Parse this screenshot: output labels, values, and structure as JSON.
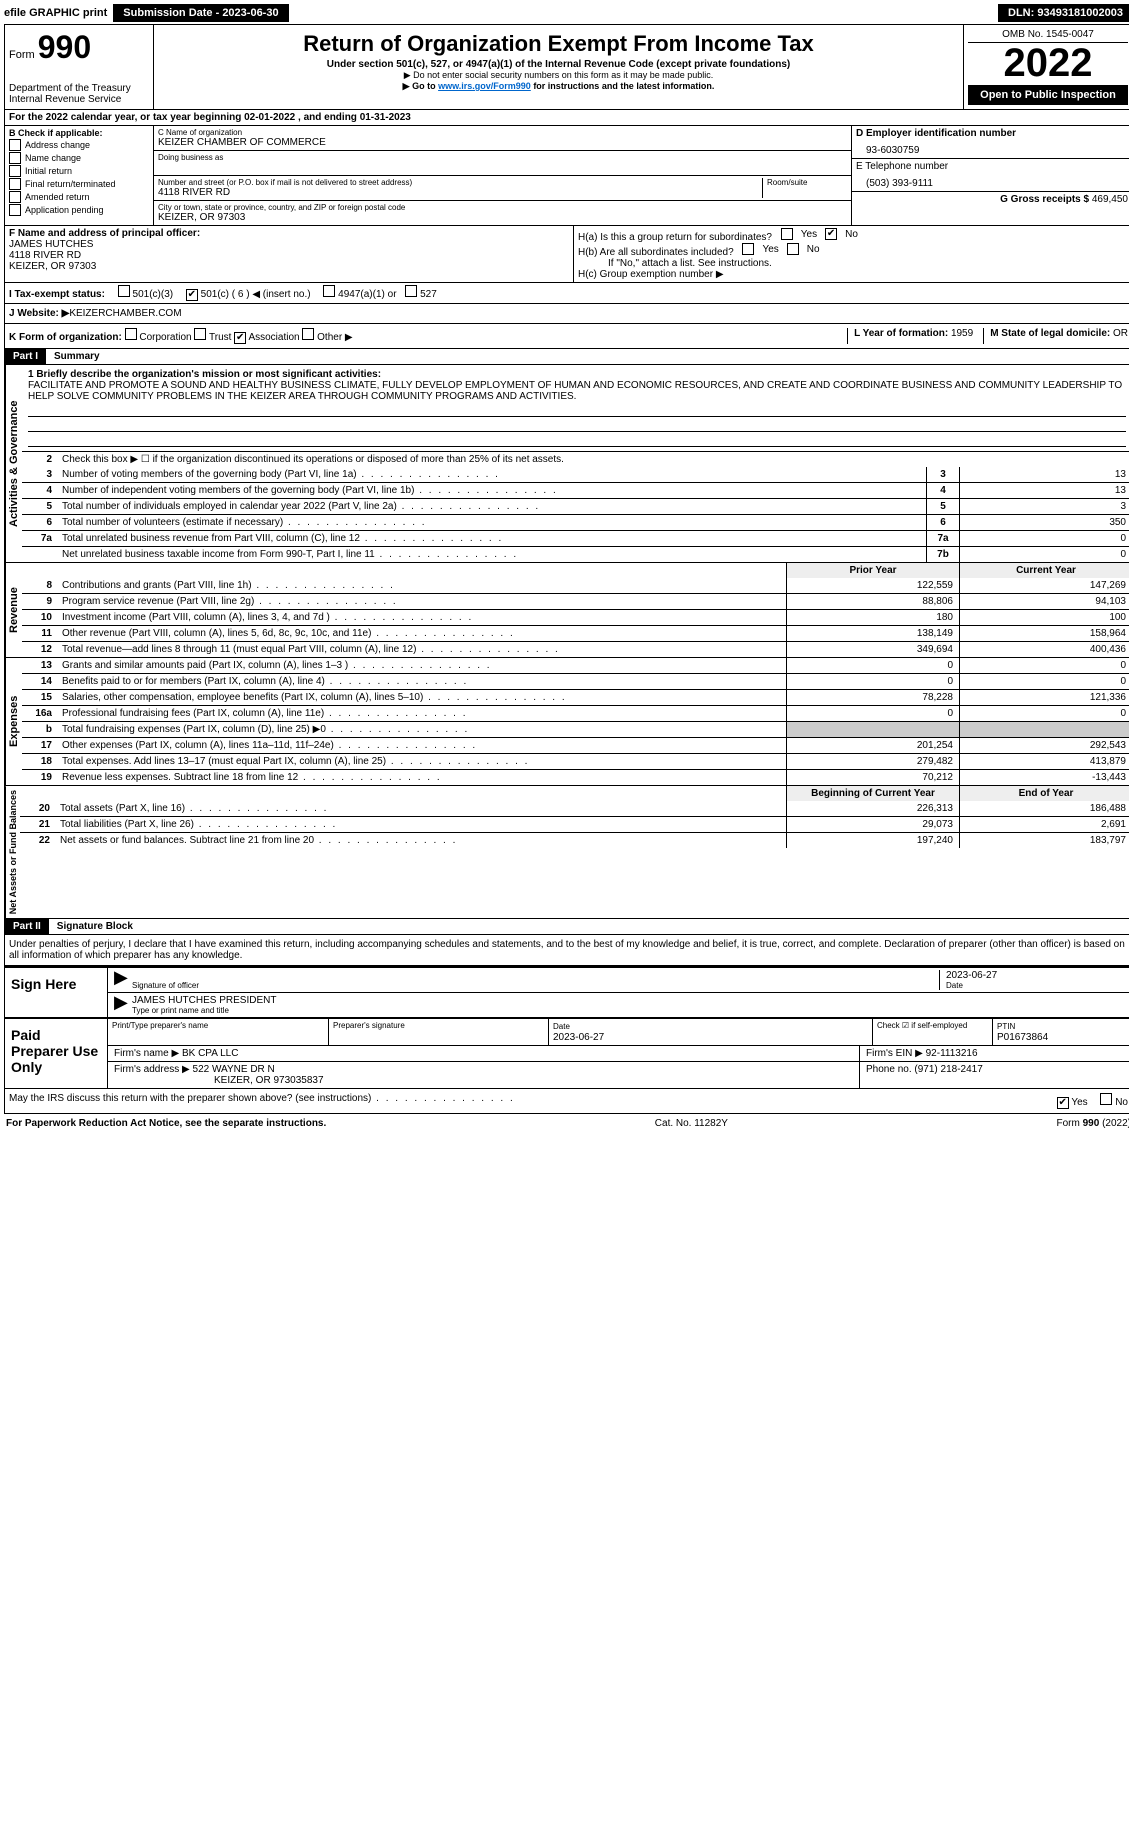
{
  "topbar": {
    "efile": "efile GRAPHIC print",
    "submission": "Submission Date - 2023-06-30",
    "dln": "DLN: 93493181002003"
  },
  "header": {
    "form_label": "Form",
    "form_number": "990",
    "title": "Return of Organization Exempt From Income Tax",
    "subtitle": "Under section 501(c), 527, or 4947(a)(1) of the Internal Revenue Code (except private foundations)",
    "note1": "▶ Do not enter social security numbers on this form as it may be made public.",
    "note2_pre": "▶ Go to ",
    "note2_link": "www.irs.gov/Form990",
    "note2_post": " for instructions and the latest information.",
    "dept": "Department of the Treasury",
    "irs": "Internal Revenue Service",
    "omb": "OMB No. 1545-0047",
    "year": "2022",
    "open": "Open to Public Inspection"
  },
  "line_a": "For the 2022 calendar year, or tax year beginning 02-01-2022    , and ending 01-31-2023",
  "b": {
    "label": "B Check if applicable:",
    "opts": [
      "Address change",
      "Name change",
      "Initial return",
      "Final return/terminated",
      "Amended return",
      "Application pending"
    ]
  },
  "c": {
    "name_label": "C Name of organization",
    "name": "KEIZER CHAMBER OF COMMERCE",
    "dba_label": "Doing business as",
    "addr_label": "Number and street (or P.O. box if mail is not delivered to street address)",
    "room_label": "Room/suite",
    "addr": "4118 RIVER RD",
    "city_label": "City or town, state or province, country, and ZIP or foreign postal code",
    "city": "KEIZER, OR  97303"
  },
  "d": {
    "label": "D Employer identification number",
    "val": "93-6030759"
  },
  "e": {
    "label": "E Telephone number",
    "val": "(503) 393-9111"
  },
  "g": {
    "label": "G Gross receipts $",
    "val": "469,450"
  },
  "f": {
    "label": "F  Name and address of principal officer:",
    "name": "JAMES HUTCHES",
    "addr1": "4118 RIVER RD",
    "addr2": "KEIZER, OR  97303"
  },
  "h": {
    "a": "H(a)  Is this a group return for subordinates?",
    "b": "H(b)  Are all subordinates included?",
    "note": "If \"No,\" attach a list. See instructions.",
    "c": "H(c)  Group exemption number ▶",
    "yes": "Yes",
    "no": "No"
  },
  "i": {
    "label": "I  Tax-exempt status:",
    "o1": "501(c)(3)",
    "o2": "501(c) ( 6 ) ◀ (insert no.)",
    "o3": "4947(a)(1) or",
    "o4": "527"
  },
  "j": {
    "label": "J  Website: ▶",
    "val": " KEIZERCHAMBER.COM"
  },
  "k": {
    "label": "K Form of organization:",
    "o1": "Corporation",
    "o2": "Trust",
    "o3": "Association",
    "o4": "Other ▶"
  },
  "l": {
    "label": "L Year of formation:",
    "val": "1959"
  },
  "m": {
    "label": "M State of legal domicile:",
    "val": "OR"
  },
  "part1": {
    "tag": "Part I",
    "title": "Summary",
    "q1_label": "1  Briefly describe the organization's mission or most significant activities:",
    "mission": "FACILITATE AND PROMOTE A SOUND AND HEALTHY BUSINESS CLIMATE, FULLY DEVELOP EMPLOYMENT OF HUMAN AND ECONOMIC RESOURCES, AND CREATE AND COORDINATE BUSINESS AND COMMUNITY LEADERSHIP TO HELP SOLVE COMMUNITY PROBLEMS IN THE KEIZER AREA THROUGH COMMUNITY PROGRAMS AND ACTIVITIES.",
    "q2": "Check this box ▶ ☐  if the organization discontinued its operations or disposed of more than 25% of its net assets.",
    "rows_ag": [
      {
        "n": "3",
        "t": "Number of voting members of the governing body (Part VI, line 1a)",
        "k": "3",
        "v": "13"
      },
      {
        "n": "4",
        "t": "Number of independent voting members of the governing body (Part VI, line 1b)",
        "k": "4",
        "v": "13"
      },
      {
        "n": "5",
        "t": "Total number of individuals employed in calendar year 2022 (Part V, line 2a)",
        "k": "5",
        "v": "3"
      },
      {
        "n": "6",
        "t": "Total number of volunteers (estimate if necessary)",
        "k": "6",
        "v": "350"
      },
      {
        "n": "7a",
        "t": "Total unrelated business revenue from Part VIII, column (C), line 12",
        "k": "7a",
        "v": "0"
      },
      {
        "n": "",
        "t": "Net unrelated business taxable income from Form 990-T, Part I, line 11",
        "k": "7b",
        "v": "0"
      }
    ],
    "hdr_prior": "Prior Year",
    "hdr_current": "Current Year",
    "vtab_ag": "Activities & Governance",
    "vtab_rev": "Revenue",
    "vtab_exp": "Expenses",
    "vtab_net": "Net Assets or Fund Balances",
    "rev": [
      {
        "n": "8",
        "t": "Contributions and grants (Part VIII, line 1h)",
        "a": "122,559",
        "b": "147,269"
      },
      {
        "n": "9",
        "t": "Program service revenue (Part VIII, line 2g)",
        "a": "88,806",
        "b": "94,103"
      },
      {
        "n": "10",
        "t": "Investment income (Part VIII, column (A), lines 3, 4, and 7d )",
        "a": "180",
        "b": "100"
      },
      {
        "n": "11",
        "t": "Other revenue (Part VIII, column (A), lines 5, 6d, 8c, 9c, 10c, and 11e)",
        "a": "138,149",
        "b": "158,964"
      },
      {
        "n": "12",
        "t": "Total revenue—add lines 8 through 11 (must equal Part VIII, column (A), line 12)",
        "a": "349,694",
        "b": "400,436"
      }
    ],
    "exp": [
      {
        "n": "13",
        "t": "Grants and similar amounts paid (Part IX, column (A), lines 1–3 )",
        "a": "0",
        "b": "0"
      },
      {
        "n": "14",
        "t": "Benefits paid to or for members (Part IX, column (A), line 4)",
        "a": "0",
        "b": "0"
      },
      {
        "n": "15",
        "t": "Salaries, other compensation, employee benefits (Part IX, column (A), lines 5–10)",
        "a": "78,228",
        "b": "121,336"
      },
      {
        "n": "16a",
        "t": "Professional fundraising fees (Part IX, column (A), line 11e)",
        "a": "0",
        "b": "0"
      },
      {
        "n": "b",
        "t": "Total fundraising expenses (Part IX, column (D), line 25) ▶0",
        "a": "",
        "b": "",
        "shade": true
      },
      {
        "n": "17",
        "t": "Other expenses (Part IX, column (A), lines 11a–11d, 11f–24e)",
        "a": "201,254",
        "b": "292,543"
      },
      {
        "n": "18",
        "t": "Total expenses. Add lines 13–17 (must equal Part IX, column (A), line 25)",
        "a": "279,482",
        "b": "413,879"
      },
      {
        "n": "19",
        "t": "Revenue less expenses. Subtract line 18 from line 12",
        "a": "70,212",
        "b": "-13,443"
      }
    ],
    "hdr_beg": "Beginning of Current Year",
    "hdr_end": "End of Year",
    "net": [
      {
        "n": "20",
        "t": "Total assets (Part X, line 16)",
        "a": "226,313",
        "b": "186,488"
      },
      {
        "n": "21",
        "t": "Total liabilities (Part X, line 26)",
        "a": "29,073",
        "b": "2,691"
      },
      {
        "n": "22",
        "t": "Net assets or fund balances. Subtract line 21 from line 20",
        "a": "197,240",
        "b": "183,797"
      }
    ]
  },
  "part2": {
    "tag": "Part II",
    "title": "Signature Block",
    "decl": "Under penalties of perjury, I declare that I have examined this return, including accompanying schedules and statements, and to the best of my knowledge and belief, it is true, correct, and complete. Declaration of preparer (other than officer) is based on all information of which preparer has any knowledge.",
    "sign_here": "Sign Here",
    "sig_officer": "Signature of officer",
    "sig_date": "2023-06-27",
    "date_label": "Date",
    "officer_name": "JAMES HUTCHES  PRESIDENT",
    "type_name": "Type or print name and title",
    "paid": "Paid Preparer Use Only",
    "prep_name_label": "Print/Type preparer's name",
    "prep_sig_label": "Preparer's signature",
    "prep_date_label": "Date",
    "prep_date": "2023-06-27",
    "self_emp": "Check ☑ if self-employed",
    "ptin_label": "PTIN",
    "ptin": "P01673864",
    "firm_name_label": "Firm's name    ▶",
    "firm_name": "BK CPA LLC",
    "firm_ein_label": "Firm's EIN ▶",
    "firm_ein": "92-1113216",
    "firm_addr_label": "Firm's address ▶",
    "firm_addr": "522 WAYNE DR N",
    "firm_city": "KEIZER, OR  973035837",
    "firm_phone_label": "Phone no.",
    "firm_phone": "(971) 218-2417",
    "discuss": "May the IRS discuss this return with the preparer shown above? (see instructions)",
    "yes": "Yes",
    "no": "No"
  },
  "footer": {
    "left": "For Paperwork Reduction Act Notice, see the separate instructions.",
    "mid": "Cat. No. 11282Y",
    "right": "Form 990 (2022)"
  }
}
